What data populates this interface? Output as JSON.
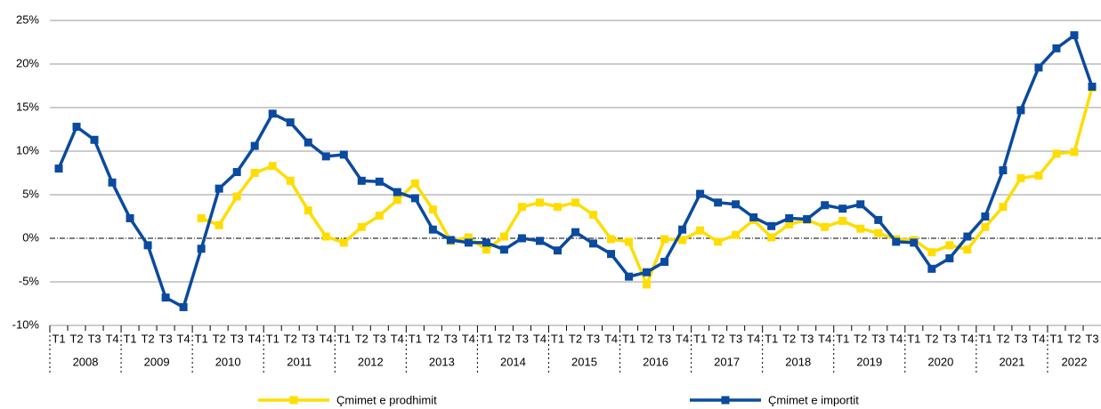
{
  "chart_data": {
    "type": "line",
    "categories": [
      "T1",
      "T2",
      "T3",
      "T4",
      "T1",
      "T2",
      "T3",
      "T4",
      "T1",
      "T2",
      "T3",
      "T4",
      "T1",
      "T2",
      "T3",
      "T4",
      "T1",
      "T2",
      "T3",
      "T4",
      "T1",
      "T2",
      "T3",
      "T4",
      "T1",
      "T2",
      "T3",
      "T4",
      "T1",
      "T2",
      "T3",
      "T4",
      "T1",
      "T2",
      "T3",
      "T4",
      "T1",
      "T2",
      "T3",
      "T4",
      "T1",
      "T2",
      "T3",
      "T4",
      "T1",
      "T2",
      "T3",
      "T4",
      "T1",
      "T2",
      "T3",
      "T4",
      "T1",
      "T2",
      "T3",
      "T4",
      "T1",
      "T2",
      "T3"
    ],
    "years": [
      "2008",
      "2009",
      "2010",
      "2011",
      "2012",
      "2013",
      "2014",
      "2015",
      "2016",
      "2017",
      "2018",
      "2019",
      "2020",
      "2021",
      "2022"
    ],
    "series": [
      {
        "name": "Çmimet e prodhimit",
        "color": "#ffdd00",
        "values": [
          null,
          null,
          null,
          null,
          null,
          null,
          null,
          null,
          2.3,
          1.5,
          4.8,
          7.5,
          8.3,
          6.6,
          3.2,
          0.2,
          -0.5,
          1.3,
          2.6,
          4.4,
          6.3,
          3.3,
          -0.3,
          0.1,
          -1.3,
          0.2,
          3.6,
          4.1,
          3.6,
          4.1,
          2.7,
          -0.1,
          -0.4,
          -5.3,
          -0.1,
          -0.2,
          0.9,
          -0.4,
          0.4,
          2.1,
          0.1,
          1.6,
          2.1,
          1.3,
          2.0,
          1.1,
          0.6,
          -0.1,
          -0.2,
          -1.6,
          -0.8,
          -1.3,
          1.3,
          3.6,
          6.9,
          7.2,
          9.7,
          9.9,
          17.3
        ]
      },
      {
        "name": "Çmimet e importit",
        "color": "#0a4a9f",
        "values": [
          8.0,
          12.8,
          11.3,
          6.4,
          2.3,
          -0.8,
          -6.8,
          -7.9,
          -1.2,
          5.7,
          7.6,
          10.6,
          14.3,
          13.3,
          11.0,
          9.4,
          9.6,
          6.6,
          6.5,
          5.3,
          4.6,
          1.0,
          -0.2,
          -0.5,
          -0.5,
          -1.3,
          0,
          -0.3,
          -1.4,
          0.7,
          -0.6,
          -1.8,
          -4.4,
          -3.9,
          -2.7,
          1.0,
          5.1,
          4.1,
          3.9,
          2.4,
          1.4,
          2.3,
          2.2,
          3.8,
          3.4,
          3.9,
          2.1,
          -0.4,
          -0.5,
          -3.5,
          -2.3,
          0.2,
          2.5,
          7.8,
          14.7,
          19.6,
          21.8,
          23.3,
          17.4
        ]
      }
    ],
    "ylim": [
      -10,
      25
    ],
    "yticks": [
      {
        "value": -10,
        "label": "-10%"
      },
      {
        "value": -5,
        "label": "-5%"
      },
      {
        "value": 0,
        "label": "0%"
      },
      {
        "value": 5,
        "label": "5%"
      },
      {
        "value": 10,
        "label": "10%"
      },
      {
        "value": 15,
        "label": "15%"
      },
      {
        "value": 20,
        "label": "20%"
      },
      {
        "value": 25,
        "label": "25%"
      }
    ],
    "grid": true,
    "legend": "bottom"
  }
}
